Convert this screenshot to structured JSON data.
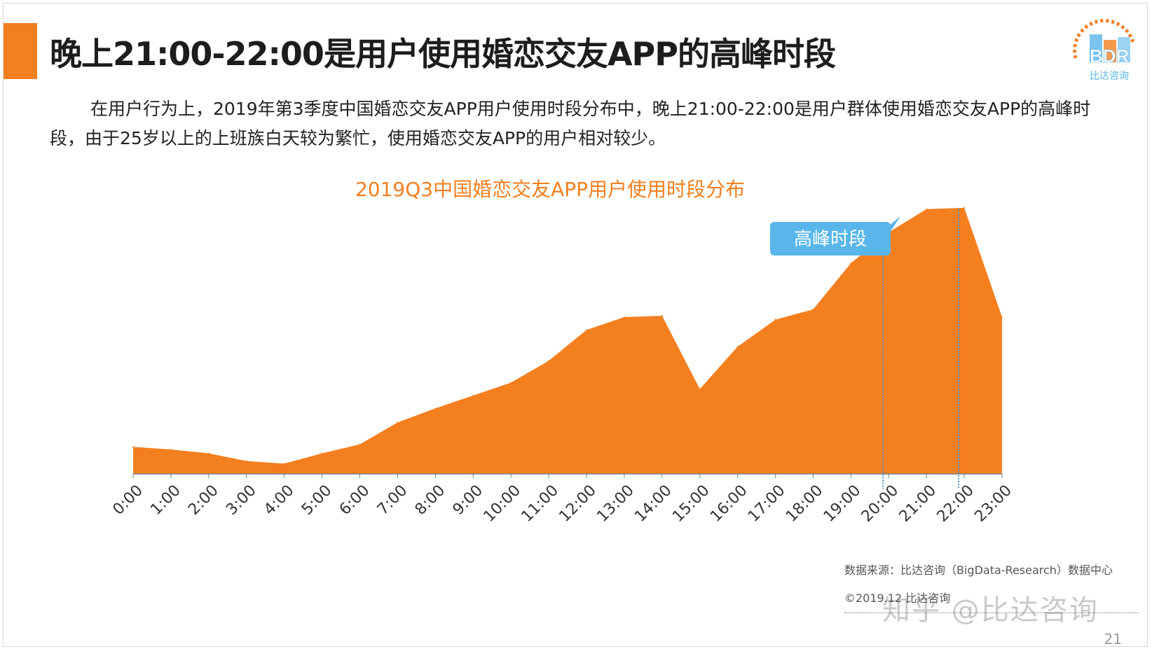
{
  "slide": {
    "title": "晚上21:00-22:00是用户使用婚恋交友APP的高峰时段",
    "description": "在用户行为上，2019年第3季度中国婚恋交友APP用户使用时段分布中，晚上21:00-22:00是用户群体使用婚恋交友APP的高峰时段，由于25岁以上的上班族白天较为繁忙，使用婚恋交友APP的用户相对较少。",
    "logo_text": "BDR",
    "logo_subtitle": "比达咨询",
    "source": "数据来源：比达咨询（BigData-Research）数据中心",
    "copyright": "©2019.12 比达咨询",
    "watermark": "知乎 @比达咨询",
    "page_number": "21",
    "accent_color": "#f47f1f",
    "callout_color": "#58b6ea"
  },
  "chart_data": {
    "type": "area",
    "title": "2019Q3中国婚恋交友APP用户使用时段分布",
    "categories": [
      "0:00",
      "1:00",
      "2:00",
      "3:00",
      "4:00",
      "5:00",
      "6:00",
      "7:00",
      "8:00",
      "9:00",
      "10:00",
      "11:00",
      "12:00",
      "13:00",
      "14:00",
      "15:00",
      "16:00",
      "17:00",
      "18:00",
      "19:00",
      "20:00",
      "21:00",
      "22:00",
      "23:00"
    ],
    "values": [
      10.5,
      9.5,
      8.0,
      5.0,
      4.0,
      8.0,
      11.5,
      20.0,
      25.5,
      30.5,
      35.5,
      44.0,
      56.0,
      61.0,
      61.5,
      33.0,
      49.5,
      60.0,
      64.0,
      82.0,
      94.0,
      103.0,
      103.5,
      61.0
    ],
    "ylim": [
      0,
      110
    ],
    "y_axis_visible": false,
    "xlabel": "",
    "ylabel": "",
    "highlight_range": [
      "20:00",
      "22:00"
    ],
    "callout_label": "高峰时段",
    "fill_color": "#f47f1f"
  }
}
